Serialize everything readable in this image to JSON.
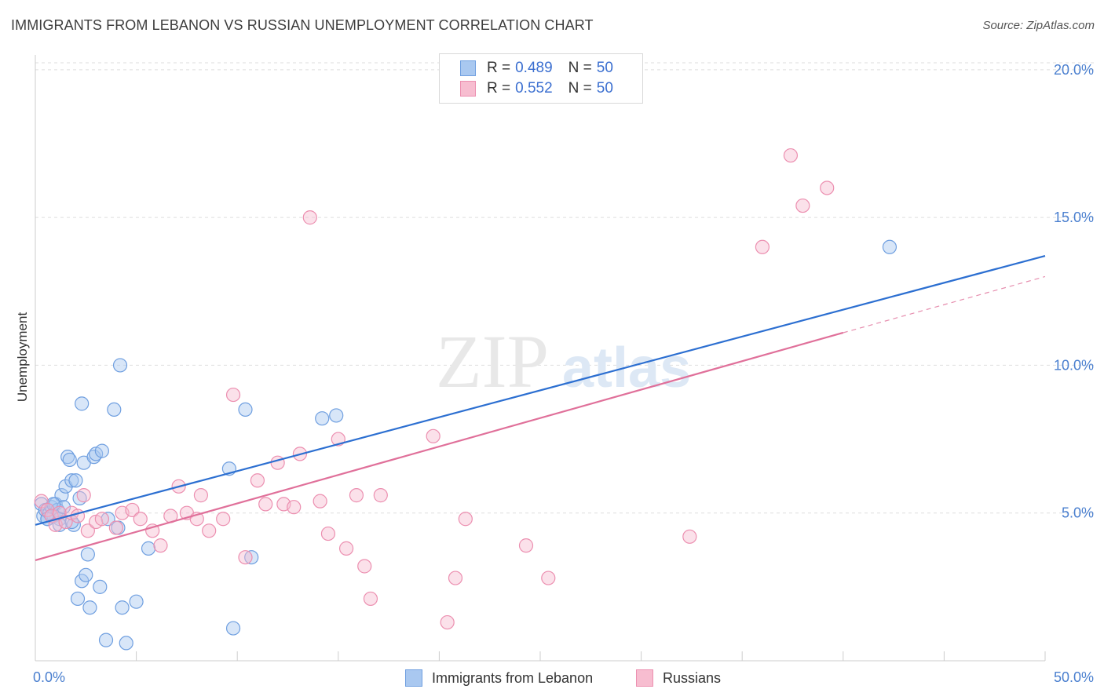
{
  "title": "IMMIGRANTS FROM LEBANON VS RUSSIAN UNEMPLOYMENT CORRELATION CHART",
  "source": "Source: ZipAtlas.com",
  "watermark": {
    "zip": "ZIP",
    "atlas": "atlas"
  },
  "legend": {
    "rows": [
      {
        "r_label": "R =",
        "r_value": "0.489",
        "n_label": "N =",
        "n_value": "50"
      },
      {
        "r_label": "R =",
        "r_value": "0.552",
        "n_label": "N =",
        "n_value": "50"
      }
    ]
  },
  "bottom_legend": {
    "series1": "Immigrants from Lebanon",
    "series2": "Russians"
  },
  "colors": {
    "blue_fill": "#a9c8f0",
    "blue_stroke": "#6f9fe0",
    "blue_line": "#2c6fd1",
    "pink_fill": "#f7bdd0",
    "pink_stroke": "#ec8fb0",
    "pink_line": "#e0709a",
    "axis_text": "#4a7fcf",
    "grid": "#dddddd"
  },
  "chart_data": {
    "type": "scatter",
    "title": "IMMIGRANTS FROM LEBANON VS RUSSIAN UNEMPLOYMENT CORRELATION CHART",
    "xlabel": "",
    "ylabel": "Unemployment",
    "xlim": [
      0,
      50
    ],
    "ylim": [
      0,
      20.5
    ],
    "x_tick_labels": [
      "0.0%",
      "50.0%"
    ],
    "y_ticks": [
      5,
      10,
      15,
      20
    ],
    "y_tick_labels": [
      "5.0%",
      "10.0%",
      "15.0%",
      "20.0%"
    ],
    "grid": true,
    "legend_placement": "top-center",
    "series": [
      {
        "name": "Immigrants from Lebanon",
        "color": "#a9c8f0",
        "trend": {
          "x": [
            0,
            50
          ],
          "y": [
            4.6,
            13.7
          ],
          "dashed_from": null
        },
        "points": [
          [
            0.3,
            5.3
          ],
          [
            0.4,
            4.9
          ],
          [
            0.5,
            5.1
          ],
          [
            0.6,
            4.8
          ],
          [
            0.7,
            5.0
          ],
          [
            0.8,
            5.2
          ],
          [
            0.9,
            4.9
          ],
          [
            1.0,
            5.3
          ],
          [
            1.1,
            5.1
          ],
          [
            1.2,
            4.8
          ],
          [
            1.3,
            5.6
          ],
          [
            1.4,
            5.2
          ],
          [
            1.5,
            5.9
          ],
          [
            1.6,
            6.9
          ],
          [
            1.7,
            6.8
          ],
          [
            1.8,
            6.1
          ],
          [
            1.9,
            4.6
          ],
          [
            2.0,
            6.1
          ],
          [
            2.1,
            2.1
          ],
          [
            2.2,
            5.5
          ],
          [
            2.3,
            2.7
          ],
          [
            2.4,
            6.7
          ],
          [
            2.5,
            2.9
          ],
          [
            2.6,
            3.6
          ],
          [
            2.7,
            1.8
          ],
          [
            2.9,
            6.9
          ],
          [
            3.0,
            7.0
          ],
          [
            3.2,
            2.5
          ],
          [
            3.3,
            7.1
          ],
          [
            3.5,
            0.7
          ],
          [
            3.6,
            4.8
          ],
          [
            3.9,
            8.5
          ],
          [
            4.1,
            4.5
          ],
          [
            4.2,
            10.0
          ],
          [
            4.3,
            1.8
          ],
          [
            4.5,
            0.6
          ],
          [
            5.0,
            2.0
          ],
          [
            5.6,
            3.8
          ],
          [
            9.6,
            6.5
          ],
          [
            9.8,
            1.1
          ],
          [
            10.4,
            8.5
          ],
          [
            10.7,
            3.5
          ],
          [
            14.2,
            8.2
          ],
          [
            14.9,
            8.3
          ],
          [
            42.3,
            14.0
          ],
          [
            1.8,
            4.7
          ],
          [
            0.9,
            5.3
          ],
          [
            2.3,
            8.7
          ],
          [
            1.2,
            4.6
          ],
          [
            0.6,
            4.8
          ]
        ]
      },
      {
        "name": "Russians",
        "color": "#f7bdd0",
        "trend": {
          "x": [
            0,
            40
          ],
          "y": [
            3.4,
            11.1
          ],
          "dashed_from": 40,
          "dashed_to": [
            50,
            13.0
          ]
        },
        "points": [
          [
            0.3,
            5.4
          ],
          [
            0.6,
            5.1
          ],
          [
            0.8,
            4.9
          ],
          [
            1.0,
            4.6
          ],
          [
            1.2,
            5.0
          ],
          [
            1.5,
            4.7
          ],
          [
            1.8,
            5.0
          ],
          [
            2.1,
            4.9
          ],
          [
            2.4,
            5.6
          ],
          [
            2.6,
            4.4
          ],
          [
            3.0,
            4.7
          ],
          [
            3.3,
            4.8
          ],
          [
            4.0,
            4.5
          ],
          [
            4.3,
            5.0
          ],
          [
            4.8,
            5.1
          ],
          [
            5.2,
            4.8
          ],
          [
            5.8,
            4.4
          ],
          [
            6.2,
            3.9
          ],
          [
            6.7,
            4.9
          ],
          [
            7.1,
            5.9
          ],
          [
            7.5,
            5.0
          ],
          [
            8.0,
            4.8
          ],
          [
            8.2,
            5.6
          ],
          [
            8.6,
            4.4
          ],
          [
            9.3,
            4.8
          ],
          [
            9.8,
            9.0
          ],
          [
            10.4,
            3.5
          ],
          [
            11.0,
            6.1
          ],
          [
            11.4,
            5.3
          ],
          [
            12.0,
            6.7
          ],
          [
            12.3,
            5.3
          ],
          [
            12.8,
            5.2
          ],
          [
            13.1,
            7.0
          ],
          [
            13.6,
            15.0
          ],
          [
            14.1,
            5.4
          ],
          [
            14.5,
            4.3
          ],
          [
            15.0,
            7.5
          ],
          [
            15.4,
            3.8
          ],
          [
            15.9,
            5.6
          ],
          [
            16.3,
            3.2
          ],
          [
            16.6,
            2.1
          ],
          [
            17.1,
            5.6
          ],
          [
            19.7,
            7.6
          ],
          [
            20.4,
            1.3
          ],
          [
            20.8,
            2.8
          ],
          [
            21.3,
            4.8
          ],
          [
            24.3,
            3.9
          ],
          [
            25.4,
            2.8
          ],
          [
            32.4,
            4.2
          ],
          [
            36.0,
            14.0
          ]
        ],
        "extra_points": [
          [
            37.4,
            17.1
          ],
          [
            38.0,
            15.4
          ],
          [
            39.2,
            16.0
          ]
        ]
      }
    ]
  }
}
